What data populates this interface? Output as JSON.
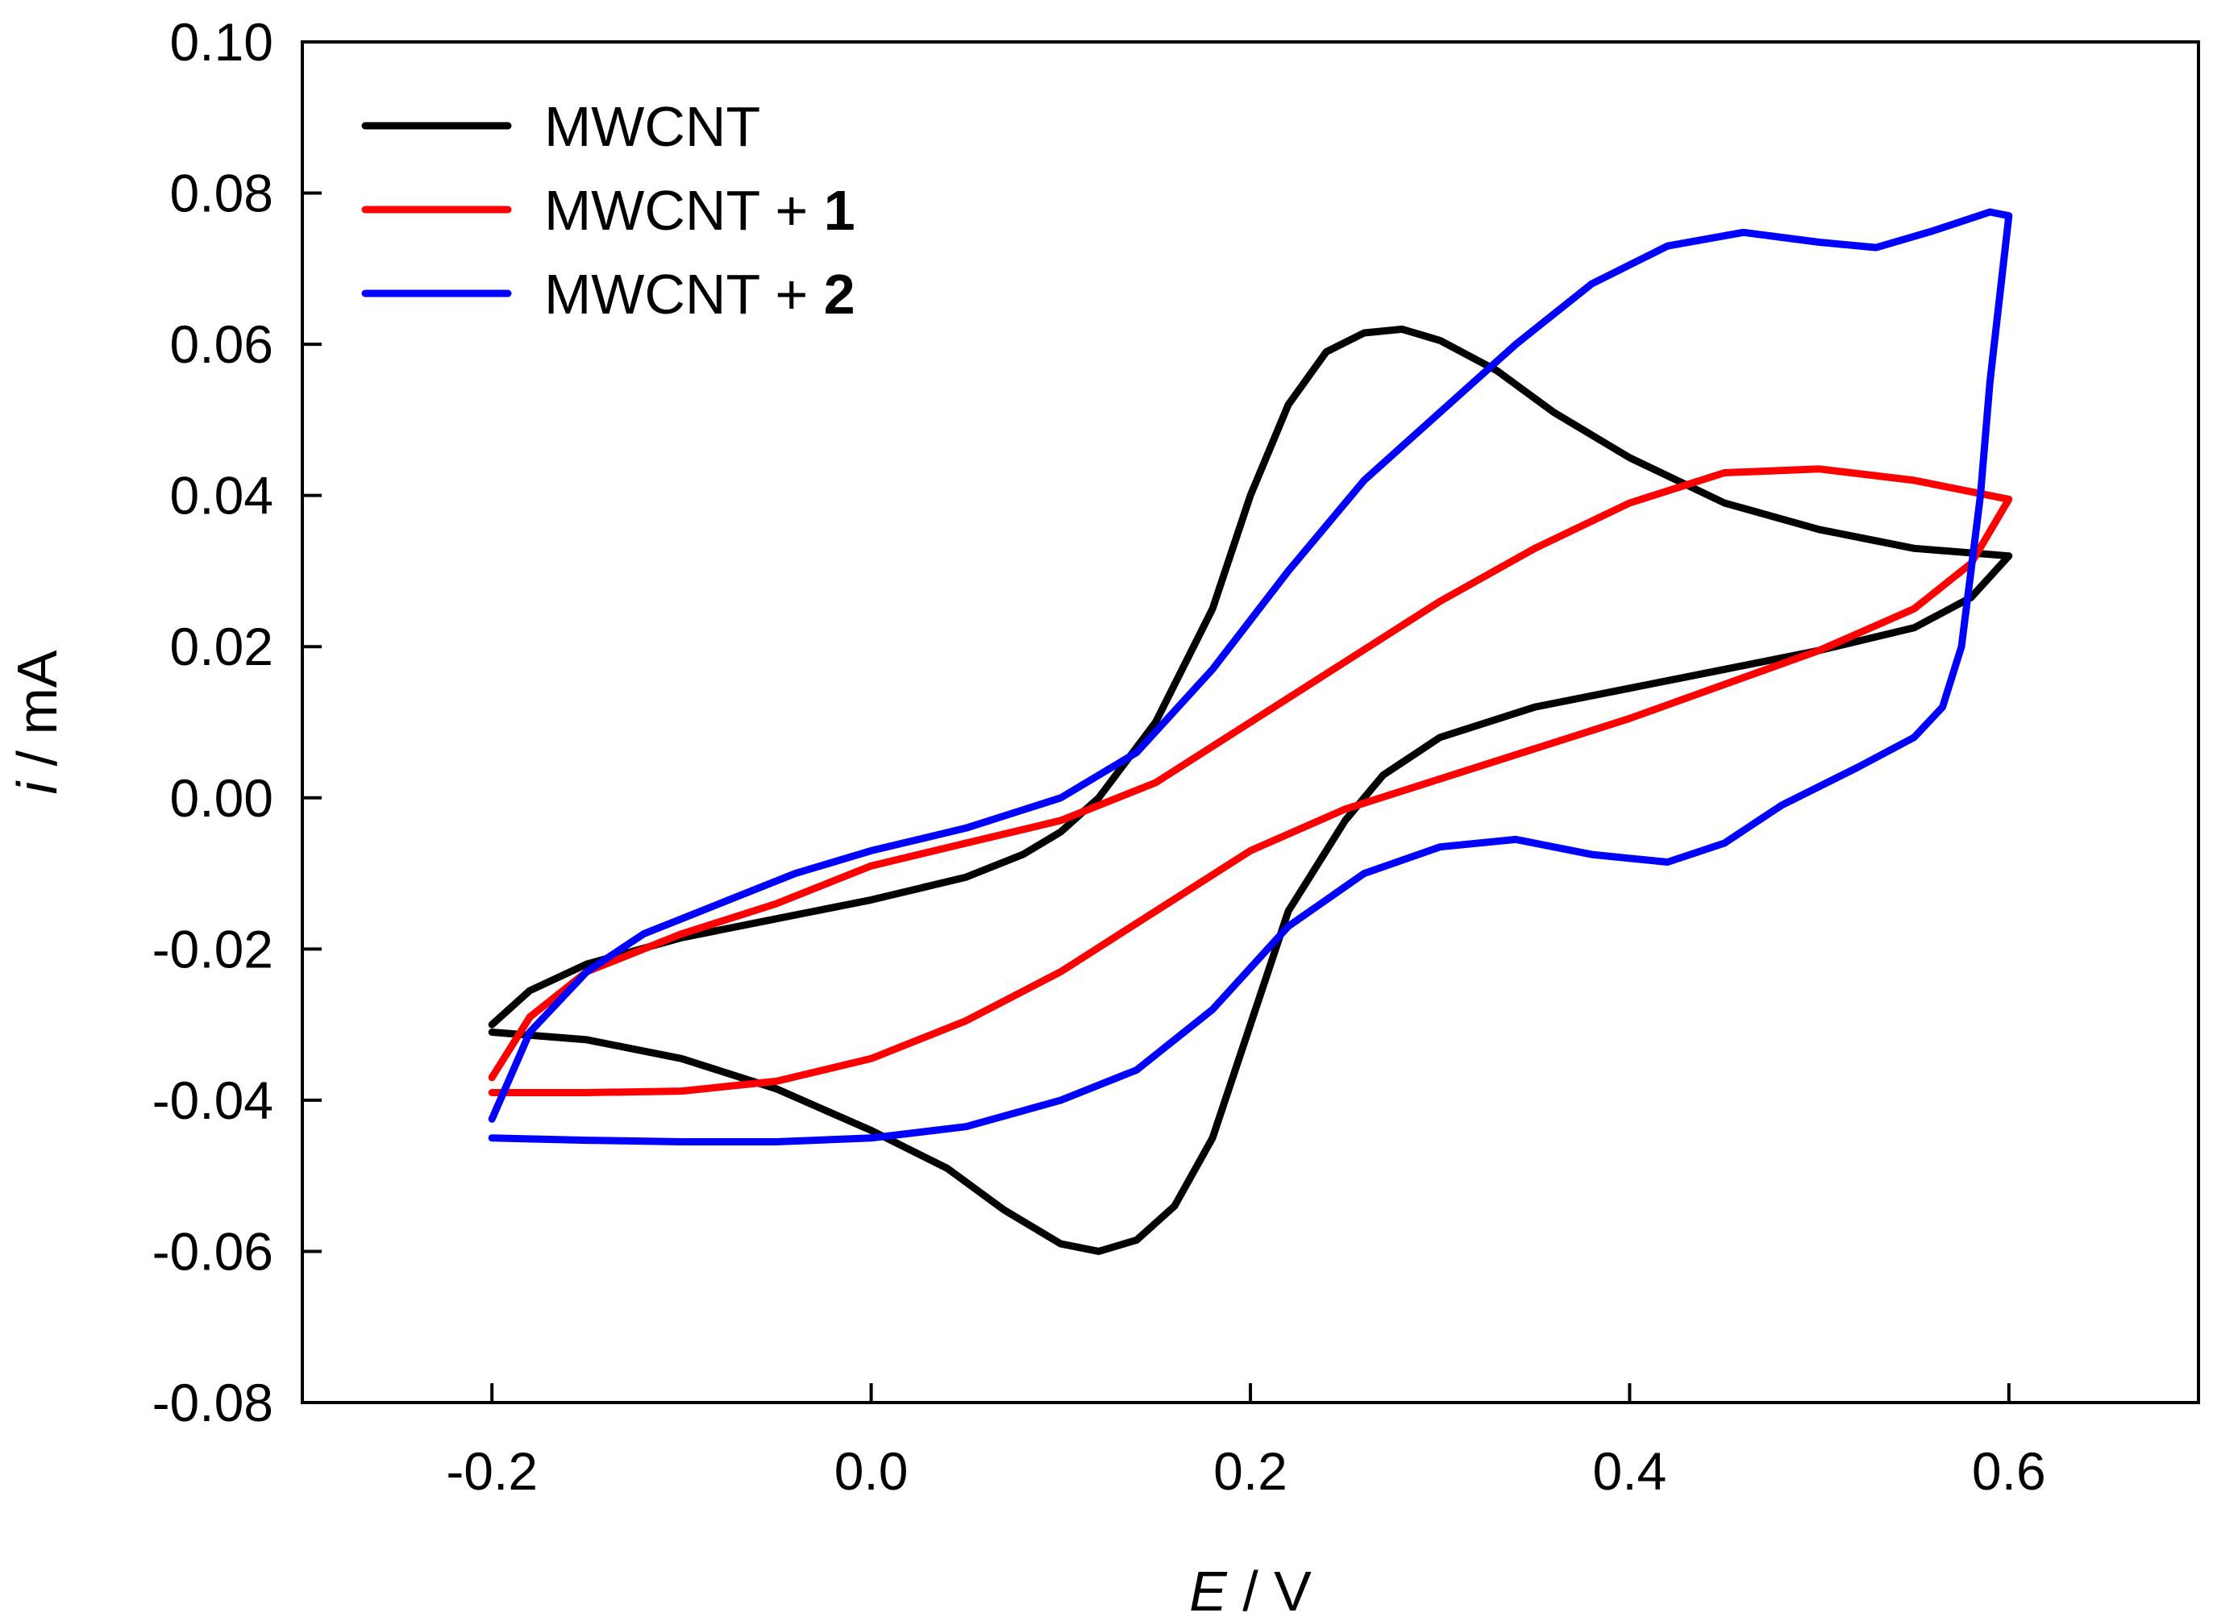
{
  "chart_data": {
    "type": "line",
    "title": "",
    "xlabel_symbol": "E",
    "xlabel_unit": " / V",
    "ylabel_symbol": "i",
    "ylabel_unit": " / mA",
    "xlim": [
      -0.3,
      0.7
    ],
    "ylim": [
      -0.08,
      0.1
    ],
    "x_ticks": [
      -0.2,
      0.0,
      0.2,
      0.4,
      0.6
    ],
    "x_tick_labels": [
      "-0.2",
      "0.0",
      "0.2",
      "0.4",
      "0.6"
    ],
    "y_ticks": [
      -0.08,
      -0.06,
      -0.04,
      -0.02,
      0.0,
      0.02,
      0.04,
      0.06,
      0.08,
      0.1
    ],
    "y_tick_labels": [
      "-0.08",
      "-0.06",
      "-0.04",
      "-0.02",
      "0.00",
      "0.02",
      "0.04",
      "0.06",
      "0.08",
      "0.10"
    ],
    "grid": false,
    "legend_position": "top-left",
    "series": [
      {
        "name": "MWCNT",
        "name_suffix": "",
        "color": "#000000",
        "points": [
          [
            -0.2,
            -0.03
          ],
          [
            -0.18,
            -0.0255
          ],
          [
            -0.15,
            -0.022
          ],
          [
            -0.1,
            -0.0185
          ],
          [
            -0.05,
            -0.016
          ],
          [
            0.0,
            -0.0135
          ],
          [
            0.05,
            -0.0105
          ],
          [
            0.08,
            -0.0075
          ],
          [
            0.1,
            -0.0045
          ],
          [
            0.12,
            0.0
          ],
          [
            0.15,
            0.01
          ],
          [
            0.18,
            0.025
          ],
          [
            0.2,
            0.04
          ],
          [
            0.22,
            0.052
          ],
          [
            0.24,
            0.059
          ],
          [
            0.26,
            0.0615
          ],
          [
            0.28,
            0.062
          ],
          [
            0.3,
            0.0605
          ],
          [
            0.33,
            0.0565
          ],
          [
            0.36,
            0.051
          ],
          [
            0.4,
            0.045
          ],
          [
            0.45,
            0.039
          ],
          [
            0.5,
            0.0355
          ],
          [
            0.55,
            0.033
          ],
          [
            0.6,
            0.032
          ],
          [
            0.6,
            0.032
          ],
          [
            0.58,
            0.0265
          ],
          [
            0.55,
            0.0225
          ],
          [
            0.5,
            0.0195
          ],
          [
            0.45,
            0.017
          ],
          [
            0.4,
            0.0145
          ],
          [
            0.35,
            0.012
          ],
          [
            0.3,
            0.008
          ],
          [
            0.27,
            0.003
          ],
          [
            0.25,
            -0.003
          ],
          [
            0.22,
            -0.015
          ],
          [
            0.2,
            -0.03
          ],
          [
            0.18,
            -0.045
          ],
          [
            0.16,
            -0.054
          ],
          [
            0.14,
            -0.0585
          ],
          [
            0.12,
            -0.06
          ],
          [
            0.1,
            -0.059
          ],
          [
            0.07,
            -0.0545
          ],
          [
            0.04,
            -0.049
          ],
          [
            0.0,
            -0.044
          ],
          [
            -0.05,
            -0.0385
          ],
          [
            -0.1,
            -0.0345
          ],
          [
            -0.15,
            -0.032
          ],
          [
            -0.2,
            -0.031
          ]
        ]
      },
      {
        "name": "MWCNT + ",
        "name_suffix": "1",
        "color": "#ff0000",
        "points": [
          [
            -0.2,
            -0.037
          ],
          [
            -0.18,
            -0.029
          ],
          [
            -0.15,
            -0.023
          ],
          [
            -0.1,
            -0.018
          ],
          [
            -0.05,
            -0.014
          ],
          [
            0.0,
            -0.009
          ],
          [
            0.05,
            -0.006
          ],
          [
            0.1,
            -0.003
          ],
          [
            0.15,
            0.002
          ],
          [
            0.2,
            0.01
          ],
          [
            0.25,
            0.018
          ],
          [
            0.3,
            0.026
          ],
          [
            0.35,
            0.033
          ],
          [
            0.4,
            0.039
          ],
          [
            0.45,
            0.043
          ],
          [
            0.5,
            0.0435
          ],
          [
            0.55,
            0.042
          ],
          [
            0.6,
            0.0395
          ],
          [
            0.6,
            0.0395
          ],
          [
            0.58,
            0.031
          ],
          [
            0.55,
            0.025
          ],
          [
            0.5,
            0.0195
          ],
          [
            0.45,
            0.015
          ],
          [
            0.4,
            0.0105
          ],
          [
            0.35,
            0.0065
          ],
          [
            0.3,
            0.0025
          ],
          [
            0.25,
            -0.0015
          ],
          [
            0.2,
            -0.007
          ],
          [
            0.15,
            -0.015
          ],
          [
            0.1,
            -0.023
          ],
          [
            0.05,
            -0.0295
          ],
          [
            0.0,
            -0.0345
          ],
          [
            -0.05,
            -0.0375
          ],
          [
            -0.1,
            -0.0388
          ],
          [
            -0.15,
            -0.039
          ],
          [
            -0.2,
            -0.039
          ]
        ]
      },
      {
        "name": "MWCNT + ",
        "name_suffix": "2",
        "color": "#0000ff",
        "points": [
          [
            -0.2,
            -0.0425
          ],
          [
            -0.18,
            -0.031
          ],
          [
            -0.15,
            -0.023
          ],
          [
            -0.12,
            -0.018
          ],
          [
            -0.08,
            -0.014
          ],
          [
            -0.04,
            -0.01
          ],
          [
            0.0,
            -0.007
          ],
          [
            0.05,
            -0.004
          ],
          [
            0.1,
            0.0
          ],
          [
            0.14,
            0.006
          ],
          [
            0.18,
            0.017
          ],
          [
            0.22,
            0.03
          ],
          [
            0.26,
            0.042
          ],
          [
            0.3,
            0.051
          ],
          [
            0.34,
            0.06
          ],
          [
            0.38,
            0.068
          ],
          [
            0.42,
            0.073
          ],
          [
            0.46,
            0.0748
          ],
          [
            0.5,
            0.0735
          ],
          [
            0.53,
            0.0728
          ],
          [
            0.56,
            0.075
          ],
          [
            0.59,
            0.0775
          ],
          [
            0.6,
            0.077
          ],
          [
            0.6,
            0.077
          ],
          [
            0.59,
            0.055
          ],
          [
            0.585,
            0.04
          ],
          [
            0.58,
            0.03
          ],
          [
            0.575,
            0.02
          ],
          [
            0.565,
            0.012
          ],
          [
            0.55,
            0.008
          ],
          [
            0.52,
            0.004
          ],
          [
            0.48,
            -0.001
          ],
          [
            0.45,
            -0.006
          ],
          [
            0.42,
            -0.0085
          ],
          [
            0.38,
            -0.0075
          ],
          [
            0.34,
            -0.0055
          ],
          [
            0.3,
            -0.0065
          ],
          [
            0.26,
            -0.01
          ],
          [
            0.22,
            -0.017
          ],
          [
            0.18,
            -0.028
          ],
          [
            0.14,
            -0.036
          ],
          [
            0.1,
            -0.04
          ],
          [
            0.05,
            -0.0435
          ],
          [
            0.0,
            -0.045
          ],
          [
            -0.05,
            -0.0455
          ],
          [
            -0.1,
            -0.0455
          ],
          [
            -0.15,
            -0.0453
          ],
          [
            -0.2,
            -0.045
          ]
        ]
      }
    ]
  }
}
